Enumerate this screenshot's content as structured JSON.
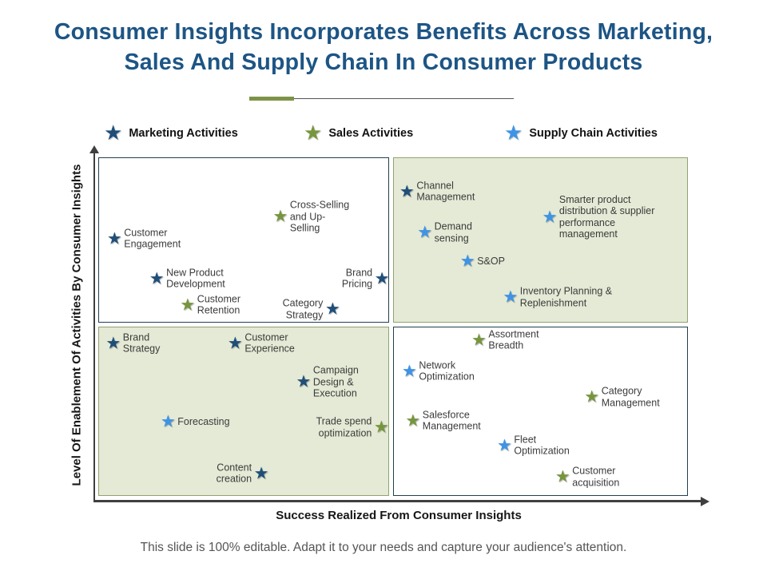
{
  "slide": {
    "title": "Consumer Insights Incorporates Benefits Across Marketing,\nSales And Supply Chain In Consumer Products",
    "footer": "This slide is 100% editable. Adapt it to your needs and capture your audience's attention."
  },
  "palette": {
    "title_color": "#1d5585",
    "marketing": "#1f4e79",
    "sales": "#76963d",
    "supply_chain": "#3e93e6",
    "quadrant_green": "#e4ead5",
    "quadrant_white": "#ffffff",
    "quadrant_border_navy": "#21404f",
    "quadrant_border_green": "#93a271",
    "axis_color": "#3f3f3f",
    "divider_olive": "#7d934a"
  },
  "legend": {
    "items": [
      {
        "label": "Marketing Activities",
        "series": "marketing"
      },
      {
        "label": "Sales Activities",
        "series": "sales"
      },
      {
        "label": "Supply Chain Activities",
        "series": "supply_chain"
      }
    ]
  },
  "chart_data": {
    "type": "scatter",
    "title": "Consumer insights benefit map",
    "xlabel": "Success Realized From Consumer Insights",
    "ylabel": "Level Of Enablement Of Activities By Consumer Insights",
    "x_range": [
      0,
      100
    ],
    "y_range": [
      0,
      100
    ],
    "grid": false,
    "legend_position": "top",
    "marker": "star",
    "quadrants": {
      "top_left_fill": "white",
      "top_right_fill": "green",
      "bottom_left_fill": "green",
      "bottom_right_fill": "white"
    },
    "series": [
      {
        "name": "Marketing Activities",
        "color_key": "marketing",
        "points": [
          {
            "label": "Customer\nEngagement",
            "x": 3.4,
            "y": 76.2,
            "label_side": "right"
          },
          {
            "label": "New Product\nDevelopment",
            "x": 10.5,
            "y": 64.5,
            "label_side": "right"
          },
          {
            "label": "Brand\nPricing",
            "x": 48.4,
            "y": 64.5,
            "label_side": "left"
          },
          {
            "label": "Category\nStrategy",
            "x": 40.1,
            "y": 55.6,
            "label_side": "left"
          },
          {
            "label": "Channel\nManagement",
            "x": 52.6,
            "y": 90.0,
            "label_side": "right"
          },
          {
            "label": "Brand\nStrategy",
            "x": 3.2,
            "y": 45.6,
            "label_side": "right"
          },
          {
            "label": "Customer\nExperience",
            "x": 23.7,
            "y": 45.6,
            "label_side": "right"
          },
          {
            "label": "Campaign\nDesign &\nExecution",
            "x": 35.2,
            "y": 34.3,
            "label_side": "right"
          },
          {
            "label": "Content\ncreation",
            "x": 28.1,
            "y": 7.5,
            "label_side": "left"
          }
        ]
      },
      {
        "name": "Sales Activities",
        "color_key": "sales",
        "points": [
          {
            "label": "Cross-Selling\nand Up-\nSelling",
            "x": 31.3,
            "y": 82.7,
            "label_side": "right"
          },
          {
            "label": "Customer\nRetention",
            "x": 15.7,
            "y": 56.8,
            "label_side": "right"
          },
          {
            "label": "Trade spend\noptimization",
            "x": 48.3,
            "y": 21.0,
            "label_side": "left"
          },
          {
            "label": "Assortment\nBreadth",
            "x": 64.7,
            "y": 46.5,
            "label_side": "right"
          },
          {
            "label": "Category\nManagement",
            "x": 83.7,
            "y": 29.9,
            "label_side": "right"
          },
          {
            "label": "Salesforce\nManagement",
            "x": 53.6,
            "y": 22.9,
            "label_side": "right"
          },
          {
            "label": "Customer\nacquisition",
            "x": 78.8,
            "y": 6.5,
            "label_side": "right"
          }
        ]
      },
      {
        "name": "Supply Chain Activities",
        "color_key": "supply_chain",
        "points": [
          {
            "label": "Demand\nsensing",
            "x": 55.6,
            "y": 78.0,
            "label_side": "right"
          },
          {
            "label": "S&OP",
            "x": 62.8,
            "y": 69.6,
            "label_side": "right"
          },
          {
            "label": "Smarter product\ndistribution & supplier\nperformance\nmanagement",
            "x": 76.6,
            "y": 82.5,
            "label_side": "right"
          },
          {
            "label": "Inventory Planning &\nReplenishment",
            "x": 70.0,
            "y": 59.1,
            "label_side": "right"
          },
          {
            "label": "Forecasting",
            "x": 12.4,
            "y": 22.7,
            "label_side": "right"
          },
          {
            "label": "Network\nOptimization",
            "x": 53.0,
            "y": 37.4,
            "label_side": "right"
          },
          {
            "label": "Fleet\nOptimization",
            "x": 69.0,
            "y": 15.7,
            "label_side": "right"
          }
        ]
      }
    ]
  }
}
